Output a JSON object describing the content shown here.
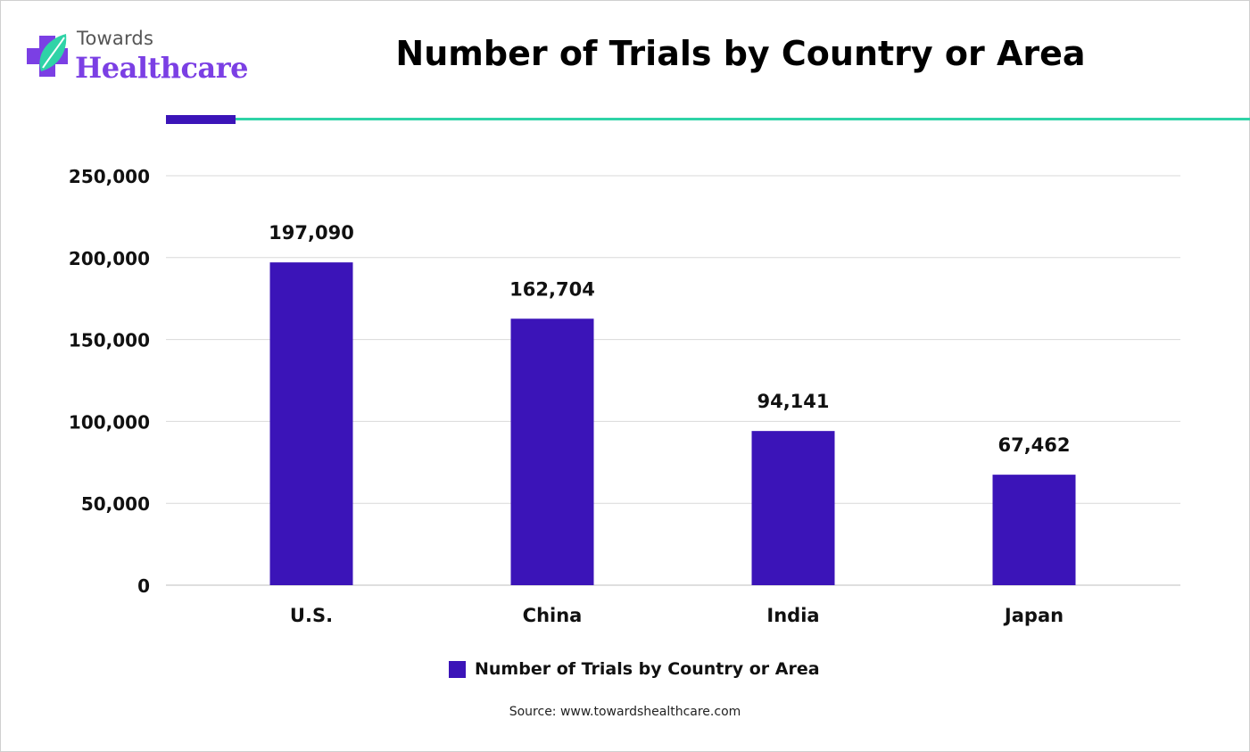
{
  "logo": {
    "line1": "Towards",
    "line2": "Healthcare"
  },
  "colors": {
    "bar": "#3b14b8",
    "accent_teal": "#2fd3a7",
    "brand_purple": "#7b3fe4",
    "gridline": "#d9d9d9"
  },
  "chart_data": {
    "type": "bar",
    "title": "Number of Trials by Country or Area",
    "categories": [
      "U.S.",
      "China",
      "India",
      "Japan"
    ],
    "series": [
      {
        "name": "Number of Trials by Country or Area",
        "values": [
          197090,
          162704,
          94141,
          67462
        ]
      }
    ],
    "data_labels": [
      "197,090",
      "162,704",
      "94,141",
      "67,462"
    ],
    "y_ticks": [
      "0",
      "50,000",
      "100,000",
      "150,000",
      "200,000",
      "250,000"
    ],
    "y_tick_values": [
      0,
      50000,
      100000,
      150000,
      200000,
      250000
    ],
    "ylim": [
      0,
      250000
    ],
    "xlabel": "",
    "ylabel": "",
    "grid": true,
    "legend_position": "bottom"
  },
  "source": "Source: www.towardshealthcare.com"
}
